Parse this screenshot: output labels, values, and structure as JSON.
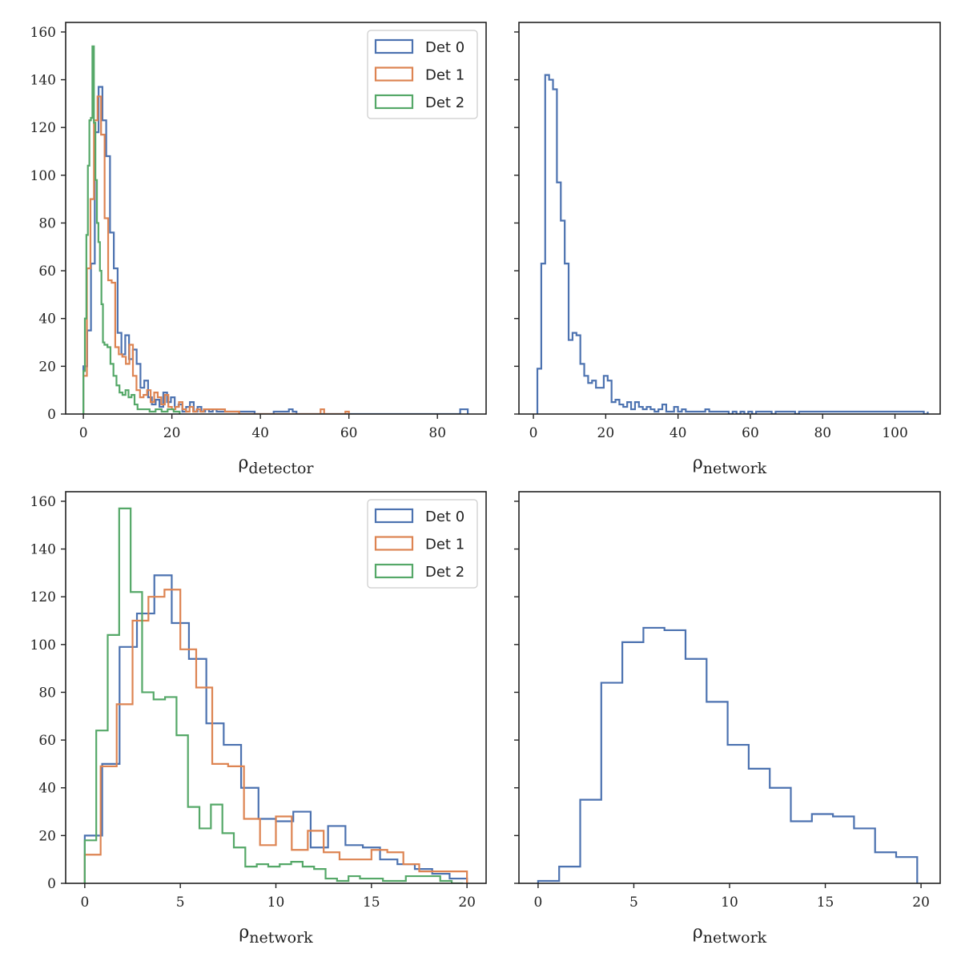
{
  "colors": {
    "det0": "#4c72b0",
    "det1": "#dd8452",
    "det2": "#55a868",
    "axis": "#222222"
  },
  "chart_data": [
    {
      "type": "histogram",
      "xlim": [
        -4,
        91
      ],
      "ylim": [
        0,
        164
      ],
      "xticks": [
        0,
        20,
        40,
        60,
        80
      ],
      "yticks": [
        0,
        20,
        40,
        60,
        80,
        100,
        120,
        140,
        160
      ],
      "show_ytick_labels": true,
      "xlabel": {
        "base": "ρ",
        "sub": "detector"
      },
      "legend": {
        "position": "top-right",
        "entries": [
          "Det 0",
          "Det 1",
          "Det 2"
        ]
      },
      "series": [
        {
          "name": "Det 0",
          "color_key": "det0",
          "edges": [
            0,
            0.86,
            1.72,
            2.58,
            3.44,
            4.3,
            5.16,
            6.02,
            6.88,
            7.74,
            8.6,
            9.46,
            10.32,
            11.18,
            12.04,
            12.9,
            13.76,
            14.62,
            15.48,
            16.34,
            17.2,
            18.06,
            18.92,
            19.78,
            20.64,
            21.5,
            22.36,
            23.22,
            24.08,
            24.94,
            25.8,
            26.66,
            27.52,
            28.38,
            29.24,
            30.1,
            34.4,
            38.7,
            43,
            44.72,
            46.44,
            47.3,
            48.16,
            85.14,
            86.86
          ],
          "counts": [
            20,
            35,
            63,
            118,
            137,
            123,
            108,
            76,
            61,
            34,
            25,
            33,
            23,
            27,
            21,
            11,
            14,
            7,
            4,
            6,
            3,
            9,
            5,
            7,
            3,
            4,
            1,
            3,
            5,
            1,
            3,
            1,
            2,
            1,
            2,
            1,
            1,
            0,
            1,
            1,
            2,
            1,
            0,
            2
          ]
        },
        {
          "name": "Det 1",
          "color_key": "det1",
          "edges": [
            0,
            0.8,
            1.6,
            2.4,
            3.2,
            4.0,
            4.8,
            5.6,
            6.4,
            7.2,
            8.0,
            8.8,
            9.6,
            10.4,
            11.2,
            12.0,
            12.8,
            13.6,
            14.4,
            15.2,
            16.0,
            16.8,
            17.6,
            18.4,
            19.2,
            20.0,
            20.8,
            21.6,
            22.4,
            23.2,
            24.0,
            24.8,
            25.6,
            26.4,
            27.2,
            32.0,
            35.2,
            53.6,
            54.4,
            59.2,
            60.0
          ],
          "counts": [
            16,
            61,
            90,
            123,
            133,
            117,
            82,
            56,
            55,
            28,
            25,
            24,
            21,
            29,
            16,
            10,
            7,
            8,
            10,
            5,
            9,
            7,
            4,
            8,
            3,
            2,
            3,
            5,
            2,
            1,
            3,
            1,
            2,
            1,
            2,
            1,
            0,
            2,
            0,
            1
          ]
        },
        {
          "name": "Det 2",
          "color_key": "det2",
          "edges": [
            0,
            0.34,
            0.68,
            1.02,
            1.36,
            1.7,
            2.04,
            2.38,
            2.72,
            3.06,
            3.4,
            3.74,
            4.08,
            4.42,
            4.76,
            5.44,
            6.12,
            6.8,
            7.48,
            8.16,
            8.84,
            9.52,
            10.2,
            10.88,
            11.56,
            12.24,
            12.92,
            13.6,
            14.96,
            16.32,
            17.68,
            19.04,
            20.4,
            21.76
          ],
          "counts": [
            18,
            40,
            75,
            104,
            123,
            124,
            154,
            122,
            98,
            80,
            72,
            60,
            46,
            30,
            29,
            28,
            21,
            16,
            12,
            9,
            8,
            10,
            7,
            8,
            4,
            2,
            2,
            2,
            1,
            2,
            1,
            2,
            1
          ]
        }
      ]
    },
    {
      "type": "histogram",
      "xlim": [
        -4,
        112.5
      ],
      "ylim": [
        0,
        164
      ],
      "xticks": [
        0,
        20,
        40,
        60,
        80,
        100
      ],
      "yticks": [
        0,
        20,
        40,
        60,
        80,
        100,
        120,
        140,
        160
      ],
      "show_ytick_labels": false,
      "xlabel": {
        "base": "ρ",
        "sub": "network"
      },
      "series": [
        {
          "name": "",
          "color_key": "det0",
          "edges": [
            1.1,
            2.18,
            3.26,
            4.34,
            5.42,
            6.5,
            7.58,
            8.66,
            9.74,
            10.82,
            11.9,
            12.98,
            14.06,
            15.14,
            16.22,
            17.3,
            18.38,
            19.46,
            20.54,
            21.62,
            22.7,
            23.78,
            24.86,
            25.94,
            27.02,
            28.1,
            29.18,
            30.26,
            31.34,
            32.42,
            33.5,
            34.58,
            35.66,
            36.74,
            37.82,
            38.9,
            39.98,
            41.06,
            42.14,
            45.38,
            46.46,
            47.54,
            48.62,
            49.7,
            54.02,
            55.1,
            56.18,
            57.26,
            58.34,
            59.42,
            60.5,
            61.58,
            65.9,
            66.98,
            72.38,
            73.46,
            107.98,
            109.06
          ],
          "counts": [
            19,
            63,
            142,
            140,
            136,
            97,
            81,
            63,
            31,
            34,
            33,
            21,
            16,
            13,
            14,
            11,
            11,
            16,
            14,
            5,
            6,
            4,
            3,
            5,
            2,
            5,
            3,
            2,
            3,
            2,
            1,
            2,
            4,
            1,
            1,
            3,
            1,
            2,
            1,
            1,
            1,
            2,
            1,
            1,
            0,
            1,
            0,
            1,
            0,
            1,
            0,
            1,
            0,
            1,
            0,
            1,
            0,
            1
          ]
        }
      ]
    },
    {
      "type": "histogram",
      "xlim": [
        -1,
        21
      ],
      "ylim": [
        0,
        164
      ],
      "xticks": [
        0,
        5,
        10,
        15,
        20
      ],
      "yticks": [
        0,
        20,
        40,
        60,
        80,
        100,
        120,
        140,
        160
      ],
      "show_ytick_labels": true,
      "xlabel": {
        "base": "ρ",
        "sub": "network"
      },
      "legend": {
        "position": "top-right",
        "entries": [
          "Det 0",
          "Det 1",
          "Det 2"
        ]
      },
      "series": [
        {
          "name": "Det 0",
          "color_key": "det0",
          "edges": [
            0,
            0.91,
            1.82,
            2.73,
            3.64,
            4.55,
            5.45,
            6.36,
            7.27,
            8.18,
            9.09,
            10.0,
            10.91,
            11.82,
            12.73,
            13.64,
            14.55,
            15.45,
            16.36,
            17.27,
            18.18,
            19.09,
            20.0
          ],
          "counts": [
            20,
            50,
            99,
            113,
            129,
            109,
            94,
            67,
            58,
            40,
            27,
            26,
            30,
            15,
            24,
            16,
            15,
            10,
            8,
            6,
            4,
            2
          ]
        },
        {
          "name": "Det 1",
          "color_key": "det1",
          "edges": [
            0,
            0.83,
            1.67,
            2.5,
            3.33,
            4.17,
            5.0,
            5.83,
            6.67,
            7.5,
            8.33,
            9.17,
            10.0,
            10.83,
            11.67,
            12.5,
            13.33,
            14.17,
            15.0,
            15.83,
            16.67,
            17.5,
            18.33,
            19.17,
            20.0
          ],
          "counts": [
            12,
            49,
            75,
            110,
            120,
            123,
            98,
            82,
            50,
            49,
            27,
            16,
            28,
            14,
            22,
            13,
            10,
            10,
            14,
            13,
            8,
            5,
            5,
            5
          ]
        },
        {
          "name": "Det 2",
          "color_key": "det2",
          "edges": [
            0,
            0.6,
            1.2,
            1.8,
            2.4,
            3.0,
            3.6,
            4.2,
            4.8,
            5.4,
            6.0,
            6.6,
            7.2,
            7.8,
            8.4,
            9.0,
            9.6,
            10.2,
            10.8,
            11.4,
            12.0,
            12.6,
            13.2,
            13.8,
            14.4,
            15.6,
            16.2,
            16.8,
            17.4,
            18.0,
            18.6,
            19.2,
            19.8
          ],
          "counts": [
            18,
            64,
            104,
            157,
            122,
            80,
            77,
            78,
            62,
            32,
            23,
            33,
            21,
            15,
            7,
            8,
            7,
            8,
            9,
            7,
            6,
            2,
            1,
            3,
            2,
            1,
            1,
            3,
            3,
            3,
            1,
            0
          ]
        }
      ]
    },
    {
      "type": "histogram",
      "xlim": [
        -1,
        21
      ],
      "ylim": [
        0,
        164
      ],
      "xticks": [
        0,
        5,
        10,
        15,
        20
      ],
      "yticks": [
        0,
        20,
        40,
        60,
        80,
        100,
        120,
        140,
        160
      ],
      "show_ytick_labels": false,
      "xlabel": {
        "base": "ρ",
        "sub": "network"
      },
      "series": [
        {
          "name": "",
          "color_key": "det0",
          "edges": [
            0,
            1.1,
            2.2,
            3.3,
            4.4,
            5.5,
            6.6,
            7.7,
            8.8,
            9.9,
            11.0,
            12.1,
            13.2,
            14.3,
            15.4,
            16.5,
            17.6,
            18.7,
            19.8
          ],
          "counts": [
            1,
            7,
            35,
            84,
            101,
            107,
            106,
            94,
            76,
            58,
            48,
            40,
            26,
            29,
            28,
            23,
            13,
            11
          ]
        }
      ]
    }
  ]
}
